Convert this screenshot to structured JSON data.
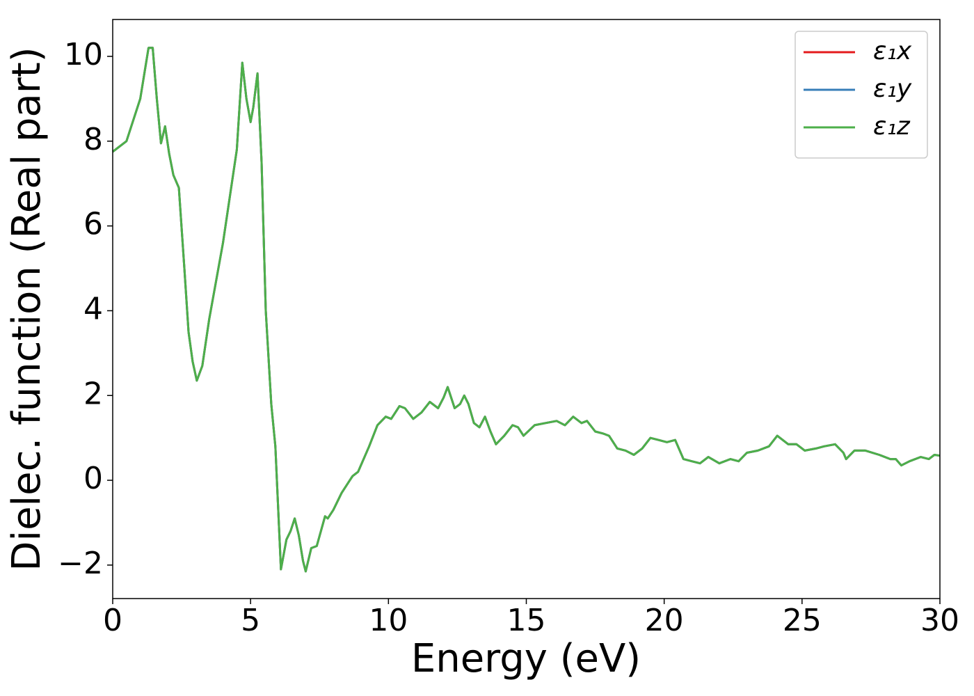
{
  "chart_data": {
    "type": "line",
    "xlabel": "Energy (eV)",
    "ylabel": "Dielec. function (Real part)",
    "x": [
      0,
      0.5,
      1.0,
      1.3,
      1.45,
      1.6,
      1.75,
      1.9,
      2.05,
      2.2,
      2.4,
      2.6,
      2.75,
      2.9,
      3.05,
      3.25,
      3.5,
      4.0,
      4.5,
      4.7,
      4.85,
      5.0,
      5.1,
      5.25,
      5.4,
      5.55,
      5.75,
      5.9,
      6.1,
      6.3,
      6.45,
      6.6,
      6.75,
      6.9,
      7.0,
      7.2,
      7.4,
      7.7,
      7.8,
      8.0,
      8.3,
      8.6,
      8.7,
      8.9,
      9.3,
      9.6,
      9.9,
      10.1,
      10.4,
      10.6,
      10.9,
      11.2,
      11.5,
      11.8,
      12.0,
      12.15,
      12.4,
      12.6,
      12.75,
      12.9,
      13.1,
      13.3,
      13.5,
      13.7,
      13.9,
      14.2,
      14.5,
      14.7,
      14.9,
      15.3,
      15.7,
      16.1,
      16.4,
      16.7,
      17.0,
      17.2,
      17.5,
      17.8,
      18.0,
      18.3,
      18.6,
      18.9,
      19.2,
      19.5,
      19.8,
      20.1,
      20.4,
      20.7,
      21.0,
      21.3,
      21.6,
      22.0,
      22.4,
      22.7,
      23.0,
      23.4,
      23.8,
      24.1,
      24.5,
      24.8,
      25.1,
      25.5,
      25.8,
      26.2,
      26.5,
      26.6,
      26.9,
      27.3,
      27.8,
      28.2,
      28.4,
      28.6,
      28.9,
      29.3,
      29.6,
      29.8,
      30.0
    ],
    "series": [
      {
        "name": "ε₁x",
        "color": "#e41a1c",
        "values": [
          7.75,
          8.0,
          9.0,
          10.2,
          10.2,
          9.0,
          7.95,
          8.35,
          7.7,
          7.2,
          6.9,
          5.0,
          3.5,
          2.8,
          2.35,
          2.7,
          3.8,
          5.6,
          7.8,
          9.85,
          9.0,
          8.45,
          8.8,
          9.6,
          7.5,
          4.0,
          1.8,
          0.8,
          -2.1,
          -1.4,
          -1.2,
          -0.9,
          -1.3,
          -1.9,
          -2.15,
          -1.6,
          -1.55,
          -0.85,
          -0.9,
          -0.7,
          -0.3,
          0.0,
          0.1,
          0.2,
          0.8,
          1.3,
          1.5,
          1.45,
          1.75,
          1.7,
          1.45,
          1.6,
          1.85,
          1.7,
          1.95,
          2.2,
          1.7,
          1.8,
          2.0,
          1.8,
          1.35,
          1.25,
          1.5,
          1.15,
          0.85,
          1.05,
          1.3,
          1.25,
          1.05,
          1.3,
          1.35,
          1.4,
          1.3,
          1.5,
          1.35,
          1.4,
          1.15,
          1.1,
          1.05,
          0.75,
          0.7,
          0.6,
          0.75,
          1.0,
          0.95,
          0.9,
          0.95,
          0.5,
          0.45,
          0.4,
          0.55,
          0.4,
          0.5,
          0.45,
          0.65,
          0.7,
          0.8,
          1.05,
          0.85,
          0.85,
          0.7,
          0.75,
          0.8,
          0.85,
          0.65,
          0.5,
          0.7,
          0.7,
          0.6,
          0.5,
          0.5,
          0.35,
          0.45,
          0.55,
          0.5,
          0.6,
          0.58
        ]
      },
      {
        "name": "ε₁y",
        "color": "#377eb8",
        "values": [
          7.75,
          8.0,
          9.0,
          10.2,
          10.2,
          9.0,
          7.95,
          8.35,
          7.7,
          7.2,
          6.9,
          5.0,
          3.5,
          2.8,
          2.35,
          2.7,
          3.8,
          5.6,
          7.8,
          9.85,
          9.0,
          8.45,
          8.8,
          9.6,
          7.5,
          4.0,
          1.8,
          0.8,
          -2.1,
          -1.4,
          -1.2,
          -0.9,
          -1.3,
          -1.9,
          -2.15,
          -1.6,
          -1.55,
          -0.85,
          -0.9,
          -0.7,
          -0.3,
          0.0,
          0.1,
          0.2,
          0.8,
          1.3,
          1.5,
          1.45,
          1.75,
          1.7,
          1.45,
          1.6,
          1.85,
          1.7,
          1.95,
          2.2,
          1.7,
          1.8,
          2.0,
          1.8,
          1.35,
          1.25,
          1.5,
          1.15,
          0.85,
          1.05,
          1.3,
          1.25,
          1.05,
          1.3,
          1.35,
          1.4,
          1.3,
          1.5,
          1.35,
          1.4,
          1.15,
          1.1,
          1.05,
          0.75,
          0.7,
          0.6,
          0.75,
          1.0,
          0.95,
          0.9,
          0.95,
          0.5,
          0.45,
          0.4,
          0.55,
          0.4,
          0.5,
          0.45,
          0.65,
          0.7,
          0.8,
          1.05,
          0.85,
          0.85,
          0.7,
          0.75,
          0.8,
          0.85,
          0.65,
          0.5,
          0.7,
          0.7,
          0.6,
          0.5,
          0.5,
          0.35,
          0.45,
          0.55,
          0.5,
          0.6,
          0.58
        ]
      },
      {
        "name": "ε₁z",
        "color": "#4daf4a",
        "values": [
          7.75,
          8.0,
          9.0,
          10.2,
          10.2,
          9.0,
          7.95,
          8.35,
          7.7,
          7.2,
          6.9,
          5.0,
          3.5,
          2.8,
          2.35,
          2.7,
          3.8,
          5.6,
          7.8,
          9.85,
          9.0,
          8.45,
          8.8,
          9.6,
          7.5,
          4.0,
          1.8,
          0.8,
          -2.1,
          -1.4,
          -1.2,
          -0.9,
          -1.3,
          -1.9,
          -2.15,
          -1.6,
          -1.55,
          -0.85,
          -0.9,
          -0.7,
          -0.3,
          0.0,
          0.1,
          0.2,
          0.8,
          1.3,
          1.5,
          1.45,
          1.75,
          1.7,
          1.45,
          1.6,
          1.85,
          1.7,
          1.95,
          2.2,
          1.7,
          1.8,
          2.0,
          1.8,
          1.35,
          1.25,
          1.5,
          1.15,
          0.85,
          1.05,
          1.3,
          1.25,
          1.05,
          1.3,
          1.35,
          1.4,
          1.3,
          1.5,
          1.35,
          1.4,
          1.15,
          1.1,
          1.05,
          0.75,
          0.7,
          0.6,
          0.75,
          1.0,
          0.95,
          0.9,
          0.95,
          0.5,
          0.45,
          0.4,
          0.55,
          0.4,
          0.5,
          0.45,
          0.65,
          0.7,
          0.8,
          1.05,
          0.85,
          0.85,
          0.7,
          0.75,
          0.8,
          0.85,
          0.65,
          0.5,
          0.7,
          0.7,
          0.6,
          0.5,
          0.5,
          0.35,
          0.45,
          0.55,
          0.5,
          0.6,
          0.58
        ]
      }
    ],
    "xlim": [
      0,
      30
    ],
    "xticks": [
      0,
      5,
      10,
      15,
      20,
      25,
      30
    ],
    "ylim": [
      -2.79,
      10.87
    ],
    "yticks": [
      {
        "value": -2,
        "label": "−2"
      },
      0,
      2,
      4,
      6,
      8,
      10
    ],
    "grid": false,
    "legend": "upper right"
  }
}
